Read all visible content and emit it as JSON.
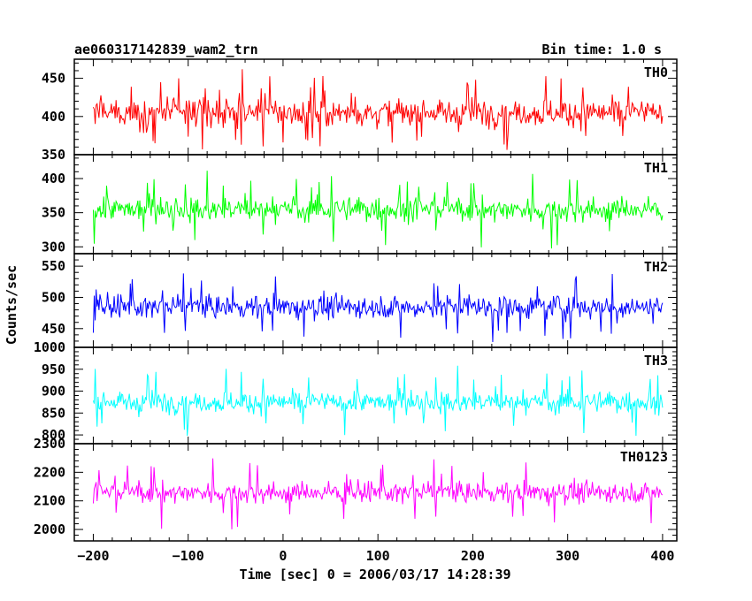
{
  "header": {
    "title": "ae060317142839_wam2_trn",
    "bin_time": "Bin time: 1.0 s"
  },
  "chart_data": {
    "type": "line",
    "title": "ae060317142839_wam2_trn",
    "subtitle": "Bin time: 1.0 s",
    "xlabel": "Time [sec] 0 = 2006/03/17 14:28:39",
    "ylabel": "Counts/sec",
    "xlim": [
      -220,
      415
    ],
    "x_ticks": [
      -200,
      -100,
      0,
      100,
      200,
      300,
      400
    ],
    "x_tick_labels": [
      "−200",
      "−100",
      "0",
      "100",
      "200",
      "300",
      "400"
    ],
    "x_range_data": [
      -200,
      400
    ],
    "panels": [
      {
        "name": "TH0",
        "color": "#ff0000",
        "ylim": [
          350,
          475
        ],
        "yticks": [
          350,
          400,
          450
        ],
        "mean": 405,
        "noise": 22,
        "spike": 28
      },
      {
        "name": "TH1",
        "color": "#00ff00",
        "ylim": [
          290,
          435
        ],
        "yticks": [
          300,
          350,
          400
        ],
        "mean": 355,
        "noise": 22,
        "spike": 30
      },
      {
        "name": "TH2",
        "color": "#0000ff",
        "ylim": [
          420,
          570
        ],
        "yticks": [
          450,
          500,
          550
        ],
        "mean": 485,
        "noise": 23,
        "spike": 32
      },
      {
        "name": "TH3",
        "color": "#00ffff",
        "ylim": [
          780,
          1000
        ],
        "yticks": [
          800,
          850,
          900,
          950,
          1000
        ],
        "mean": 875,
        "noise": 30,
        "spike": 45
      },
      {
        "name": "TH0123",
        "color": "#ff00ff",
        "ylim": [
          1960,
          2300
        ],
        "yticks": [
          2000,
          2100,
          2200,
          2300
        ],
        "mean": 2130,
        "noise": 45,
        "spike": 70
      }
    ]
  }
}
